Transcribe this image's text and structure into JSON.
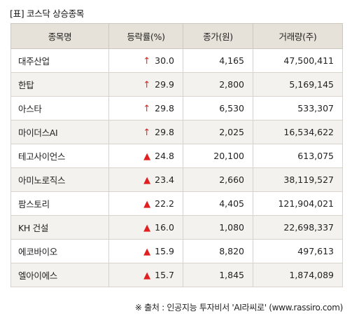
{
  "title": "[표] 코스닥 상승종목",
  "columns": [
    "종목명",
    "등락률(%)",
    "종가(원)",
    "거래량(주)"
  ],
  "rows": [
    {
      "name": "대주산업",
      "arrow": "↑",
      "arrow_icon": "up-arrow-icon",
      "rate": "30.0",
      "price": "4,165",
      "volume": "47,500,411"
    },
    {
      "name": "한탑",
      "arrow": "↑",
      "arrow_icon": "up-arrow-icon",
      "rate": "29.9",
      "price": "2,800",
      "volume": "5,169,145"
    },
    {
      "name": "아스타",
      "arrow": "↑",
      "arrow_icon": "up-arrow-icon",
      "rate": "29.8",
      "price": "6,530",
      "volume": "533,307"
    },
    {
      "name": "마이더스AI",
      "arrow": "↑",
      "arrow_icon": "up-arrow-icon",
      "rate": "29.8",
      "price": "2,025",
      "volume": "16,534,622"
    },
    {
      "name": "테고사이언스",
      "arrow": "▲",
      "arrow_icon": "up-triangle-icon",
      "rate": "24.8",
      "price": "20,100",
      "volume": "613,075"
    },
    {
      "name": "아미노로직스",
      "arrow": "▲",
      "arrow_icon": "up-triangle-icon",
      "rate": "23.4",
      "price": "2,660",
      "volume": "38,119,527"
    },
    {
      "name": "팜스토리",
      "arrow": "▲",
      "arrow_icon": "up-triangle-icon",
      "rate": "22.2",
      "price": "4,405",
      "volume": "121,904,021"
    },
    {
      "name": "KH 건설",
      "arrow": "▲",
      "arrow_icon": "up-triangle-icon",
      "rate": "16.0",
      "price": "1,080",
      "volume": "22,698,337"
    },
    {
      "name": "에코바이오",
      "arrow": "▲",
      "arrow_icon": "up-triangle-icon",
      "rate": "15.9",
      "price": "8,820",
      "volume": "497,613"
    },
    {
      "name": "엘아이에스",
      "arrow": "▲",
      "arrow_icon": "up-triangle-icon",
      "rate": "15.7",
      "price": "1,845",
      "volume": "1,874,089"
    }
  ],
  "colors": {
    "up": "#e02020",
    "header_bg": "#e7e2d9",
    "row_alt_bg": "#f4f2ee"
  },
  "source": "※ 출처 : 인공지능 투자비서 'AI라씨로' (www.rassiro.com)"
}
